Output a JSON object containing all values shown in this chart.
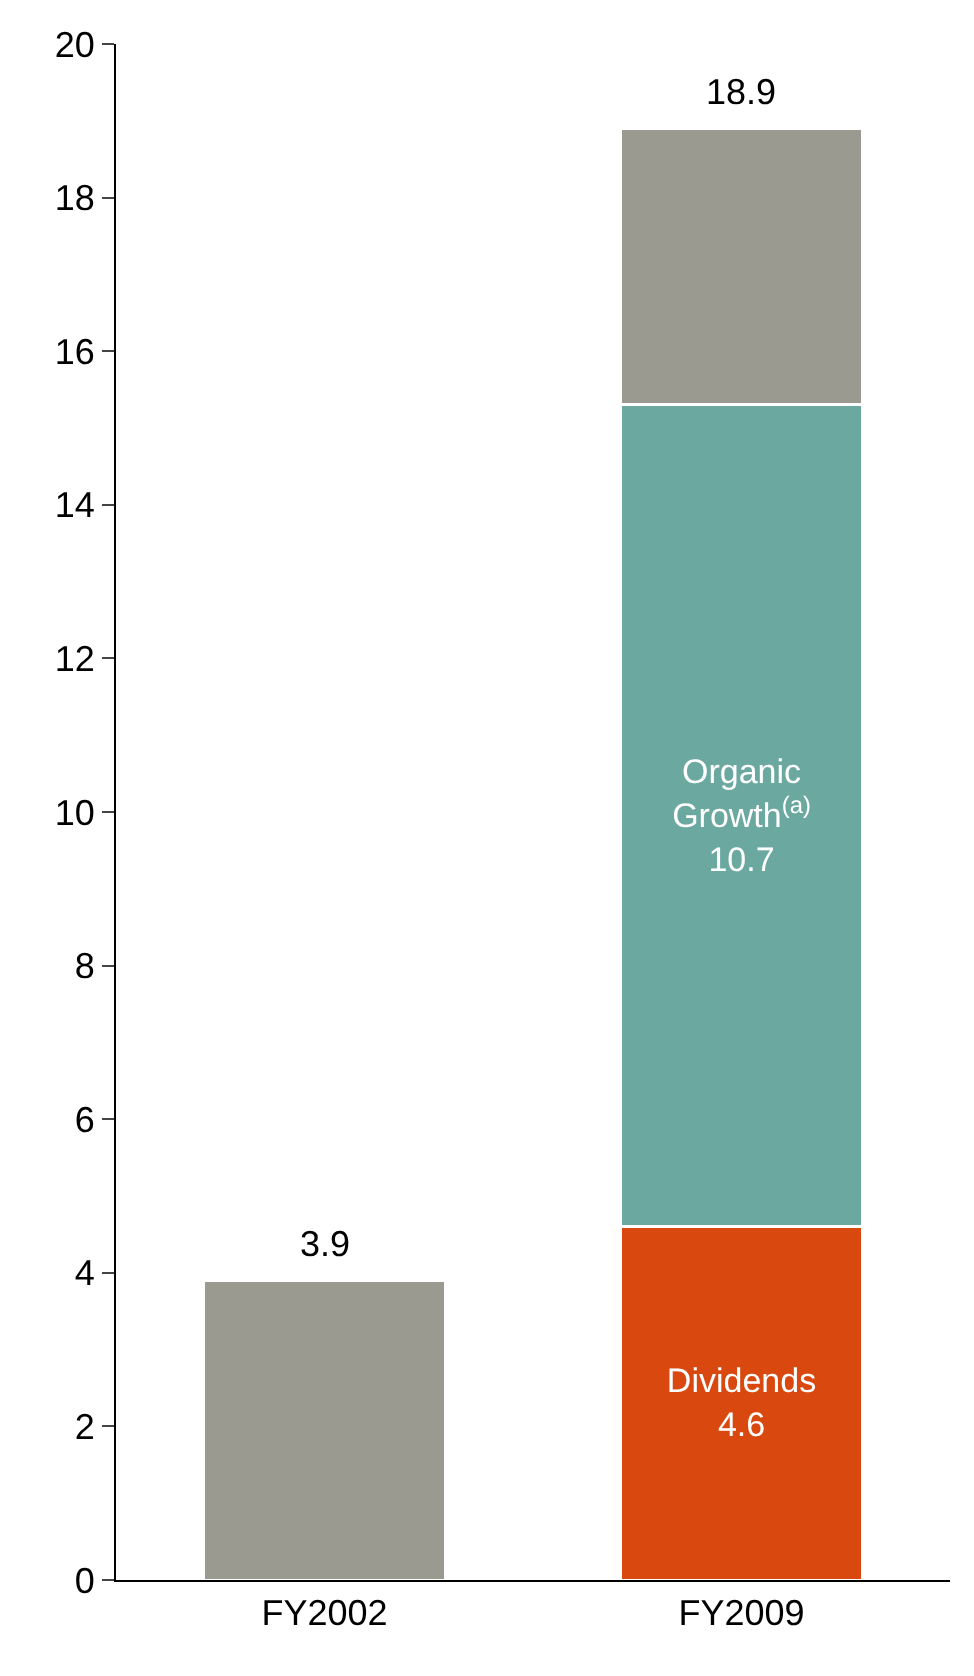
{
  "chart_data": {
    "type": "bar",
    "stacked": true,
    "categories": [
      "FY2002",
      "FY2009"
    ],
    "series": [
      {
        "name": "Dividends",
        "colors": [
          "#9a9a90",
          "#d9480f"
        ],
        "values": [
          3.9,
          4.6
        ],
        "value_labels": [
          null,
          "4.6"
        ]
      },
      {
        "name": "Organic Growth$^{(a)}$",
        "color": "#6aa8a0",
        "values": [
          null,
          10.7
        ],
        "value_labels": [
          null,
          "10.7"
        ]
      },
      {
        "color": "#9a9a90",
        "values": [
          null,
          3.6
        ]
      }
    ],
    "totals": [
      "3.9",
      "18.9"
    ],
    "ylim": [
      0,
      20
    ],
    "yticks": [
      0,
      2,
      4,
      6,
      8,
      10,
      12,
      14,
      16,
      18,
      20
    ],
    "legend": false
  }
}
